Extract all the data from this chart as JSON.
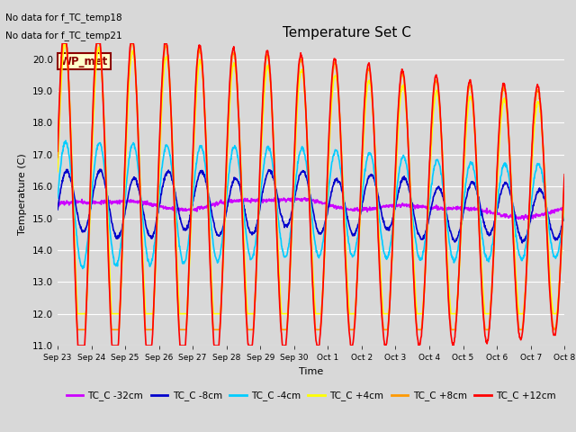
{
  "title": "Temperature Set C",
  "xlabel": "Time",
  "ylabel": "Temperature (C)",
  "ylim": [
    11.0,
    20.5
  ],
  "yticks": [
    11.0,
    12.0,
    13.0,
    14.0,
    15.0,
    16.0,
    17.0,
    18.0,
    19.0,
    20.0
  ],
  "annotations": [
    "No data for f_TC_temp18",
    "No data for f_TC_temp21"
  ],
  "wp_met_label": "WP_met",
  "series_labels": [
    "TC_C -32cm",
    "TC_C -8cm",
    "TC_C -4cm",
    "TC_C +4cm",
    "TC_C +8cm",
    "TC_C +12cm"
  ],
  "series_colors": [
    "#cc00ff",
    "#0000cc",
    "#00ccff",
    "#ffff00",
    "#ff9900",
    "#ff0000"
  ],
  "background_color": "#d8d8d8",
  "plot_bg_color": "#d8d8d8",
  "n_points": 1500,
  "tick_labels": [
    "Sep 23",
    "Sep 24",
    "Sep 25",
    "Sep 26",
    "Sep 27",
    "Sep 28",
    "Sep 29",
    "Sep 30",
    "Oct 1",
    "Oct 2",
    "Oct 3",
    "Oct 4",
    "Oct 5",
    "Oct 6",
    "Oct 7",
    "Oct 8"
  ],
  "tick_positions": [
    0,
    1,
    2,
    3,
    4,
    5,
    6,
    7,
    8,
    9,
    10,
    11,
    12,
    13,
    14,
    15
  ]
}
